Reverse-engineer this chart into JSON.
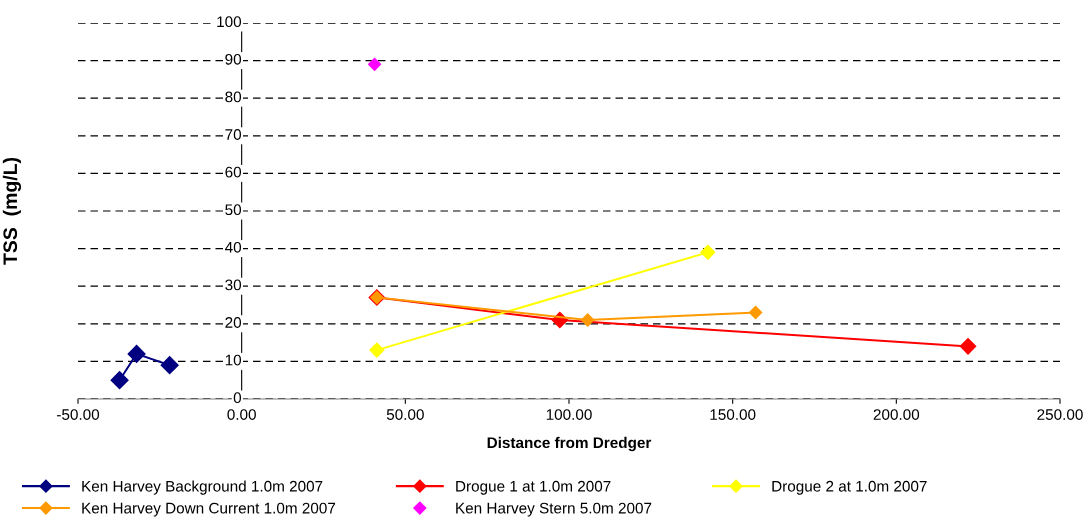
{
  "chart_data": {
    "type": "line",
    "xlabel": "Distance from Dredger",
    "ylabel": "TSS  (mg/L)",
    "xlim": [
      -50,
      250
    ],
    "xticks": [
      {
        "value": -50,
        "label": "-50.00"
      },
      {
        "value": 0,
        "label": "0.00"
      },
      {
        "value": 50,
        "label": "50.00"
      },
      {
        "value": 100,
        "label": "100.00"
      },
      {
        "value": 150,
        "label": "150.00"
      },
      {
        "value": 200,
        "label": "200.00"
      },
      {
        "value": 250,
        "label": "250.00"
      }
    ],
    "ylim": [
      0,
      100
    ],
    "yticks": [
      0,
      10,
      20,
      30,
      40,
      50,
      60,
      70,
      80,
      90,
      100
    ],
    "grid": "y",
    "legend": "bottom",
    "marker": "diamond",
    "series": [
      {
        "name": "Ken Harvey Background 1.0m 2007",
        "color": "#000080",
        "x": [
          -37.3,
          -32.1,
          -22.0
        ],
        "values": [
          5,
          12,
          9
        ]
      },
      {
        "name": "Drogue 1 at 1.0m 2007",
        "color": "#ff0000",
        "x": [
          41.3,
          97.2,
          221.9
        ],
        "values": [
          27,
          21,
          14
        ]
      },
      {
        "name": "Drogue 2 at 1.0m 2007",
        "color": "#ffff00",
        "x": [
          41.3,
          142.4
        ],
        "values": [
          13,
          39
        ]
      },
      {
        "name": "Ken Harvey Down Current 1.0m 2007",
        "color": "#ff9900",
        "x": [
          41.3,
          105.7,
          157.0
        ],
        "values": [
          27,
          21,
          23
        ]
      },
      {
        "name": "Ken Harvey Stern 5.0m 2007",
        "color": "#ff00ff",
        "type": "scatter",
        "x": [
          40.6
        ],
        "values": [
          89
        ]
      }
    ]
  }
}
